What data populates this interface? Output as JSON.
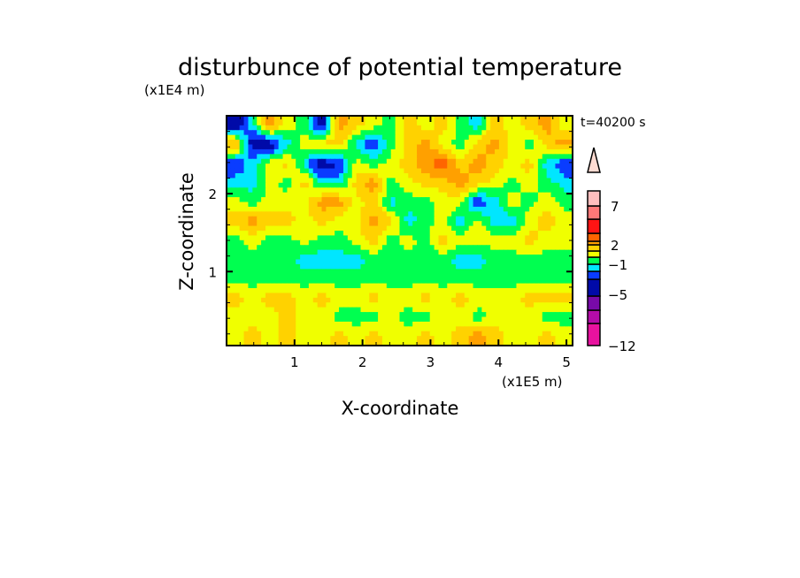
{
  "chart_data": {
    "type": "heatmap",
    "title": "disturbunce of potential temperature",
    "xlabel": "X-coordinate",
    "ylabel": "Z-coordinate",
    "x_unit": "(x1E5 m)",
    "y_unit": "(x1E4 m)",
    "time_label": "t=40200 s",
    "xlim": [
      0,
      5.09
    ],
    "ylim": [
      0.05,
      3.0
    ],
    "x_ticks": [
      "1",
      "2",
      "3",
      "4",
      "5"
    ],
    "y_ticks": [
      "1",
      "2"
    ],
    "colorbar": {
      "labels": [
        "7",
        "2",
        "−1",
        "−5",
        "−12"
      ],
      "label_values": [
        7,
        2,
        -1,
        -5,
        -12
      ],
      "levels": [
        -12,
        -9,
        -7,
        -5,
        -3,
        -2,
        -1,
        0,
        1,
        2,
        3,
        5,
        7,
        9,
        12
      ],
      "colors": [
        "#e8129f",
        "#b40ca8",
        "#780aa8",
        "#000aa8",
        "#0a3cff",
        "#00e6ff",
        "#00ff50",
        "#f0ff00",
        "#ffd200",
        "#ffa000",
        "#ff6400",
        "#ff1414",
        "#ff7878",
        "#ffbebe"
      ],
      "over_color": "#ffdcd2"
    },
    "grid_values_top_to_bottom": [
      [
        -4,
        -1.5,
        2.5,
        0.5,
        -0.5,
        -4,
        2.5,
        1.5,
        0.5,
        -0.5,
        1.5,
        0.5,
        1.5,
        -0.5,
        -1.5,
        1.5,
        0.5,
        1.5,
        2.5,
        0.5
      ],
      [
        2.5,
        -4,
        -4,
        -1.5,
        0.5,
        1.5,
        1.5,
        -1.5,
        -3,
        -0.5,
        1.5,
        2.5,
        0.5,
        -0.5,
        1.5,
        2.5,
        0.5,
        -0.5,
        1.5,
        2.5
      ],
      [
        -3,
        -1.5,
        0.5,
        1.5,
        -1.5,
        -4,
        -3,
        0.5,
        -0.5,
        0.5,
        1.5,
        2.5,
        4,
        1.5,
        2.5,
        1.5,
        0.5,
        1.5,
        -1.5,
        -3
      ],
      [
        -1.5,
        -1.5,
        0.5,
        -0.5,
        1.5,
        -1.5,
        -1.5,
        1.5,
        2.5,
        -0.5,
        0.5,
        1.5,
        1.5,
        2.5,
        1.5,
        0.5,
        -0.5,
        0.5,
        -0.5,
        -1.5
      ],
      [
        0.5,
        -0.5,
        0.5,
        0.5,
        0.5,
        2.5,
        2.5,
        0.5,
        1.5,
        -1.5,
        -0.5,
        -0.5,
        0.5,
        0.5,
        -3,
        -1.5,
        0.5,
        -0.5,
        0.5,
        -0.5
      ],
      [
        1.5,
        2.5,
        1.5,
        1.5,
        0.5,
        1.5,
        0.5,
        0.5,
        2.5,
        1.5,
        -1.5,
        -0.5,
        0.5,
        -1.5,
        0.5,
        -1.5,
        -1.5,
        0.5,
        1.5,
        0.5
      ],
      [
        -0.5,
        0.5,
        -0.5,
        -0.5,
        0.5,
        -0.5,
        -0.5,
        0.5,
        1.5,
        -0.5,
        0.5,
        -0.5,
        1.5,
        0.5,
        0.5,
        0.5,
        0.5,
        1.5,
        0.5,
        0.5
      ],
      [
        -0.5,
        -0.5,
        -0.5,
        -0.5,
        -1.5,
        -1.5,
        -1.5,
        -1.5,
        -0.5,
        -0.5,
        -0.5,
        -0.5,
        -0.5,
        -1.5,
        -1.5,
        -0.5,
        -0.5,
        -0.5,
        -0.5,
        -0.5
      ],
      [
        -0.5,
        -0.5,
        -0.5,
        -0.5,
        -0.5,
        -0.5,
        -0.5,
        -0.5,
        -0.5,
        -0.5,
        -0.5,
        -0.5,
        -0.5,
        -0.5,
        -0.5,
        -0.5,
        -0.5,
        -0.5,
        -0.5,
        -0.5
      ],
      [
        1.5,
        0.5,
        1.5,
        1.5,
        0.5,
        1.5,
        0.5,
        0.5,
        1.5,
        0.5,
        0.5,
        1.5,
        0.5,
        1.5,
        0.5,
        0.5,
        0.5,
        1.5,
        1.5,
        1.5
      ],
      [
        0.5,
        0.5,
        0.5,
        1.5,
        0.5,
        0.5,
        -0.5,
        -0.5,
        -0.5,
        0.5,
        -0.5,
        -0.5,
        0.5,
        0.5,
        -0.5,
        0.5,
        0.5,
        0.5,
        -0.5,
        -0.5
      ],
      [
        0.5,
        1.5,
        0.5,
        1.5,
        0.5,
        0.5,
        1.5,
        0.5,
        1.5,
        0.5,
        0.5,
        1.5,
        0.5,
        1.5,
        2.5,
        1.5,
        0.5,
        0.5,
        1.5,
        0.5
      ]
    ]
  }
}
